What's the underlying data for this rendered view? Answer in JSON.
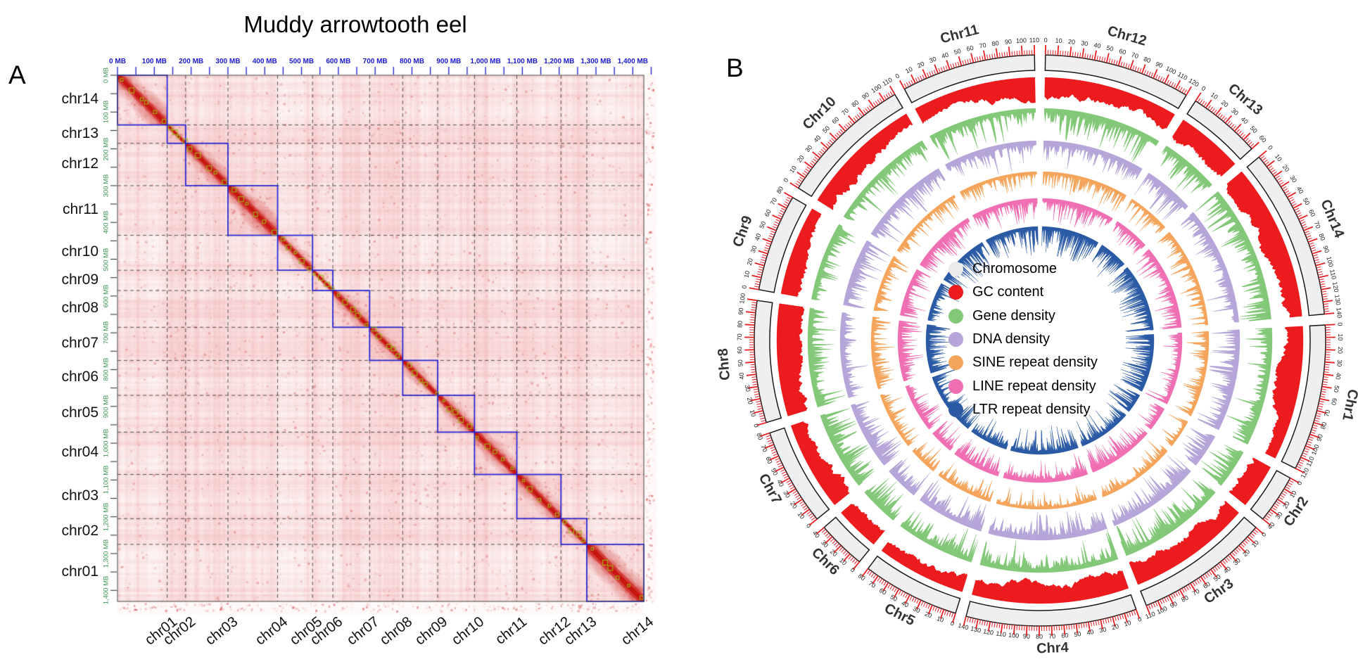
{
  "figure": {
    "panel_a": {
      "label": "A",
      "title": "Muddy arrowtooth eel",
      "axis_unit": "MB",
      "top_axis_labels": [
        "0 MB",
        "100 MB",
        "200 MB",
        "300 MB",
        "400 MB",
        "500 MB",
        "600 MB",
        "700 MB",
        "800 MB",
        "900 MB",
        "1,000 MB",
        "1,100 MB",
        "1,200 MB",
        "1,300 MB",
        "1,400 MB"
      ],
      "left_axis_labels": [
        "0 MB",
        "100 MB",
        "200 MB",
        "300 MB",
        "400 MB",
        "500 MB",
        "600 MB",
        "700 MB",
        "800 MB",
        "900 MB",
        "1,000 MB",
        "1,100 MB",
        "1,200 MB",
        "1,300 MB",
        "1,400 MB"
      ],
      "row_labels": [
        "chr14",
        "chr13",
        "chr12",
        "chr11",
        "chr10",
        "chr09",
        "chr08",
        "chr07",
        "chr06",
        "chr05",
        "chr04",
        "chr03",
        "chr02",
        "chr01"
      ],
      "col_labels": [
        "chr01",
        "chr02",
        "chr03",
        "chr04",
        "chr05",
        "chr06",
        "chr07",
        "chr08",
        "chr09",
        "chr10",
        "chr11",
        "chr12",
        "chr13",
        "chr14"
      ],
      "colors": {
        "top_axis": "#1a1acc",
        "left_mb_axis": "#3d9555",
        "block_border": "#2323d6",
        "heat_core": "#cd1912",
        "diag_marker": "#9fb619",
        "grid": "#2d2d2d"
      }
    },
    "panel_b": {
      "label": "B",
      "legend": [
        {
          "label": "Chromosome",
          "color": "#ebebeb"
        },
        {
          "label": "GC content",
          "color": "#ec1b1e"
        },
        {
          "label": "Gene density",
          "color": "#83c879"
        },
        {
          "label": "DNA density",
          "color": "#b5a5d8"
        },
        {
          "label": "SINE repeat density",
          "color": "#f5a45c"
        },
        {
          "label": "LINE repeat density",
          "color": "#f06eb2"
        },
        {
          "label": "LTR repeat density",
          "color": "#2b5aa5"
        }
      ]
    }
  },
  "chart_data": [
    {
      "type": "heatmap",
      "panel": "A",
      "title": "Muddy arrowtooth eel",
      "description": "Hi-C chromatin contact map, white-to-red intensity, intra-chromosomal blocks outlined in blue along the diagonal",
      "x_categories": [
        "chr01",
        "chr02",
        "chr03",
        "chr04",
        "chr05",
        "chr06",
        "chr07",
        "chr08",
        "chr09",
        "chr10",
        "chr11",
        "chr12",
        "chr13",
        "chr14"
      ],
      "y_categories": [
        "chr14",
        "chr13",
        "chr12",
        "chr11",
        "chr10",
        "chr09",
        "chr08",
        "chr07",
        "chr06",
        "chr05",
        "chr04",
        "chr03",
        "chr02",
        "chr01"
      ],
      "x_axis_ticks_mb": [
        0,
        100,
        200,
        300,
        400,
        500,
        600,
        700,
        800,
        900,
        1000,
        1100,
        1200,
        1300,
        1400
      ],
      "y_axis_ticks_mb": [
        0,
        100,
        200,
        300,
        400,
        500,
        600,
        700,
        800,
        900,
        1000,
        1100,
        1200,
        1300,
        1400
      ],
      "row_block_sizes_mb": [
        135,
        50,
        115,
        135,
        95,
        55,
        100,
        90,
        95,
        100,
        115,
        120,
        70,
        155
      ],
      "total_mb": 1430,
      "colormap": "white-to-red",
      "grid": "dashed lines at chromosome boundaries"
    },
    {
      "type": "circos",
      "panel": "B",
      "chromosomes_clockwise_from_top": [
        {
          "name": "Chr12",
          "length_mb": 120
        },
        {
          "name": "Chr13",
          "length_mb": 60
        },
        {
          "name": "Chr14",
          "length_mb": 140
        },
        {
          "name": "Chr1",
          "length_mb": 120
        },
        {
          "name": "Chr2",
          "length_mb": 40
        },
        {
          "name": "Chr3",
          "length_mb": 110
        },
        {
          "name": "Chr4",
          "length_mb": 140
        },
        {
          "name": "Chr5",
          "length_mb": 80
        },
        {
          "name": "Chr6",
          "length_mb": 40
        },
        {
          "name": "Chr7",
          "length_mb": 80
        },
        {
          "name": "Chr8",
          "length_mb": 100
        },
        {
          "name": "Chr9",
          "length_mb": 80
        },
        {
          "name": "Chr10",
          "length_mb": 110
        },
        {
          "name": "Chr11",
          "length_mb": 110
        }
      ],
      "axis_tick_major_mb": 10,
      "axis_tick_minor_mb": 2,
      "tracks_outer_to_inner": [
        "Chromosome",
        "GC content",
        "Gene density",
        "DNA density",
        "SINE repeat density",
        "LINE repeat density",
        "LTR repeat density"
      ],
      "legend_position": "center"
    }
  ]
}
